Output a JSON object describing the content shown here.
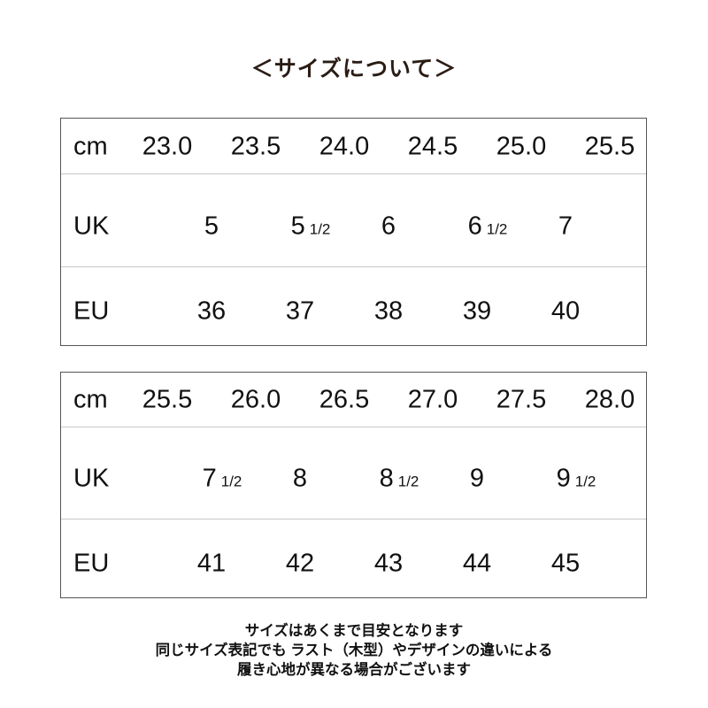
{
  "title": "＜サイズについて＞",
  "tables": [
    {
      "cm_label": "cm",
      "uk_label": "UK",
      "eu_label": "EU",
      "cm": [
        "23.0",
        "23.5",
        "24.0",
        "24.5",
        "25.0",
        "25.5"
      ],
      "uk": [
        {
          "n": "5",
          "h": ""
        },
        {
          "n": "5",
          "h": "1/2"
        },
        {
          "n": "6",
          "h": ""
        },
        {
          "n": "6",
          "h": "1/2"
        },
        {
          "n": "7",
          "h": ""
        }
      ],
      "eu": [
        "36",
        "37",
        "38",
        "39",
        "40"
      ]
    },
    {
      "cm_label": "cm",
      "uk_label": "UK",
      "eu_label": "EU",
      "cm": [
        "25.5",
        "26.0",
        "26.5",
        "27.0",
        "27.5",
        "28.0"
      ],
      "uk": [
        {
          "n": "7",
          "h": "1/2"
        },
        {
          "n": "8",
          "h": ""
        },
        {
          "n": "8",
          "h": "1/2"
        },
        {
          "n": "9",
          "h": ""
        },
        {
          "n": "9",
          "h": "1/2"
        }
      ],
      "eu": [
        "41",
        "42",
        "43",
        "44",
        "45"
      ]
    }
  ],
  "notes": [
    "サイズはあくまで目安となります",
    "同じサイズ表記でも ラスト（木型）やデザインの違いによる",
    "履き心地が異なる場合がございます"
  ]
}
